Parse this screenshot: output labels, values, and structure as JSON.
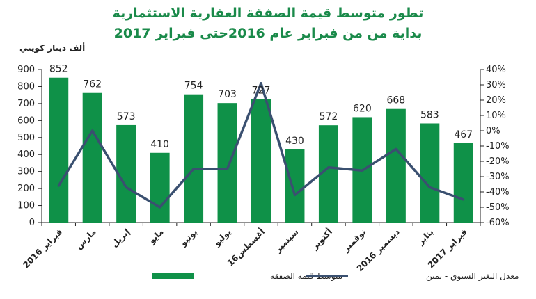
{
  "chart_data": {
    "type": "bar",
    "title": "تطور متوسط قيمة الصفقة العقارية الاستثمارية",
    "subtitle": "بداية من من فبراير عام 2016حتى فبراير 2017",
    "ylabel": "ألف دينار كويتي",
    "ylim": [
      0,
      900
    ],
    "yticks": [
      0,
      100,
      200,
      300,
      400,
      500,
      600,
      700,
      800,
      900
    ],
    "y2lim": [
      -60,
      40
    ],
    "y2ticks": [
      "-60%",
      "-50%",
      "-40%",
      "-30%",
      "-20%",
      "-10%",
      "0%",
      "10%",
      "20%",
      "30%",
      "40%"
    ],
    "categories": [
      "فبراير 2016",
      "مارس",
      "إبريل",
      "مايو",
      "يونيو",
      "يوليو",
      "أغسطس16",
      "سبتمبر",
      "أكتوبر",
      "نوفمبر",
      "ديسمبر 2016",
      "يناير",
      "فبراير 2017"
    ],
    "series": [
      {
        "name": "متوسط قيمة الصفقة",
        "type": "bar",
        "axis": "left",
        "color": "#0f9148",
        "values": [
          852,
          762,
          573,
          410,
          754,
          703,
          727,
          430,
          572,
          620,
          668,
          583,
          467
        ],
        "labels": [
          "852",
          "762",
          "573",
          "410",
          "754",
          "703",
          "727",
          "430",
          "572",
          "620",
          "668",
          "583",
          "467"
        ]
      },
      {
        "name": "معدل التغير السنوي - يمين",
        "type": "line",
        "axis": "right",
        "color": "#3a5070",
        "values": [
          -36,
          0,
          -37,
          -50,
          -25,
          -25,
          31,
          -42,
          -24,
          -26,
          -12,
          -37,
          -45
        ]
      }
    ],
    "legend_position": "bottom",
    "grid": false
  }
}
